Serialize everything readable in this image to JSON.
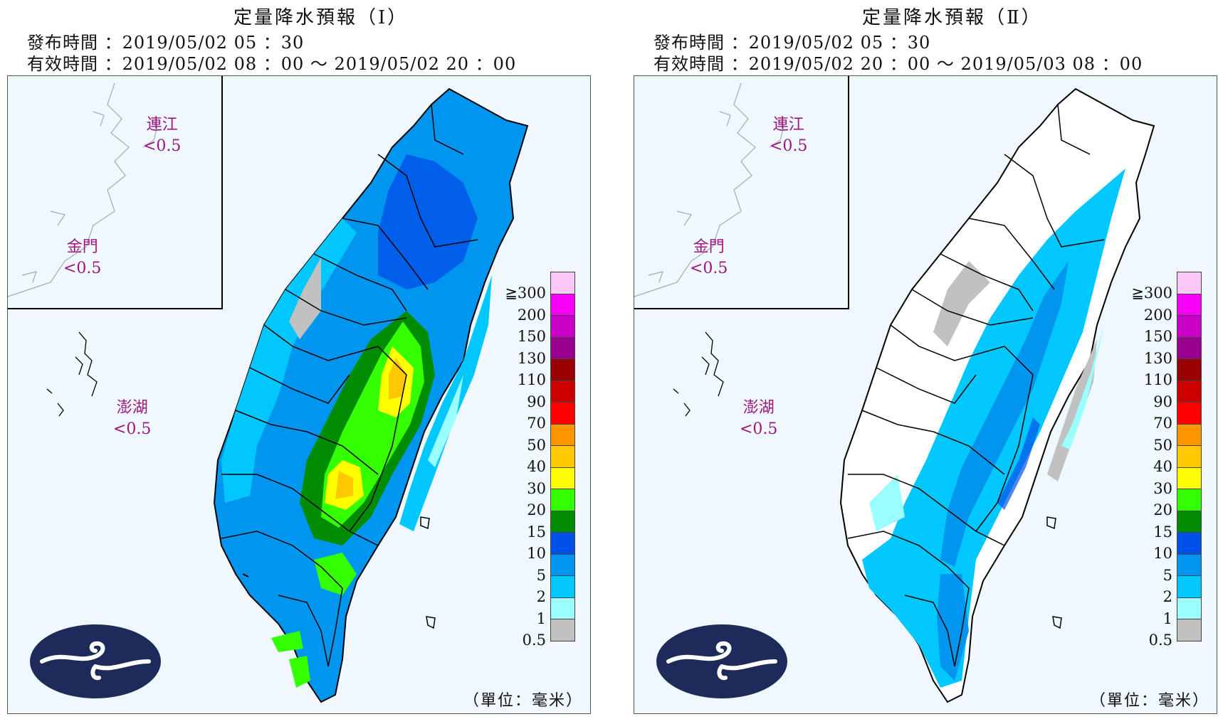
{
  "panels": [
    {
      "title": "定量降水預報（Ⅰ）",
      "issue_time": "發布時間 ：2019/05/02 05 ：30",
      "valid_time": "有效時間 ：2019/05/02 08 ：00 〜 2019/05/02 20 ：00",
      "islands": {
        "matsu": {
          "name": "連江",
          "value": "<0.5"
        },
        "kinmen": {
          "name": "金門",
          "value": "<0.5"
        },
        "penghu": {
          "name": "澎湖",
          "value": "<0.5"
        }
      },
      "unit": "（單位：毫米）",
      "max_category": "20–50 mm in central mountains"
    },
    {
      "title": "定量降水預報（Ⅱ）",
      "issue_time": "發布時間 ：2019/05/02 05 ：30",
      "valid_time": "有效時間 ：2019/05/02 20 ：00 〜 2019/05/03 08 ：00",
      "islands": {
        "matsu": {
          "name": "連江",
          "value": "<0.5"
        },
        "kinmen": {
          "name": "金門",
          "value": "<0.5"
        },
        "penghu": {
          "name": "澎湖",
          "value": "<0.5"
        }
      },
      "unit": "（單位：毫米）",
      "max_category": "5–10 mm in central and eastern mountains"
    }
  ],
  "legend": [
    {
      "label": "≧300",
      "color": "#fbc8f5"
    },
    {
      "label": "200",
      "color": "#f700f7"
    },
    {
      "label": "150",
      "color": "#c800c8"
    },
    {
      "label": "130",
      "color": "#9a0090"
    },
    {
      "label": "110",
      "color": "#9b0000"
    },
    {
      "label": "90",
      "color": "#cd0000"
    },
    {
      "label": "70",
      "color": "#ff0000"
    },
    {
      "label": "50",
      "color": "#ff9500"
    },
    {
      "label": "40",
      "color": "#ffc800"
    },
    {
      "label": "30",
      "color": "#ffff00"
    },
    {
      "label": "20",
      "color": "#33ff00"
    },
    {
      "label": "15",
      "color": "#008c00"
    },
    {
      "label": "10",
      "color": "#0051e8"
    },
    {
      "label": "5",
      "color": "#0096f0"
    },
    {
      "label": "2",
      "color": "#00c8ff"
    },
    {
      "label": "1",
      "color": "#9bfeff"
    },
    {
      "label": "0.5",
      "color": "#c1c1c1"
    }
  ]
}
